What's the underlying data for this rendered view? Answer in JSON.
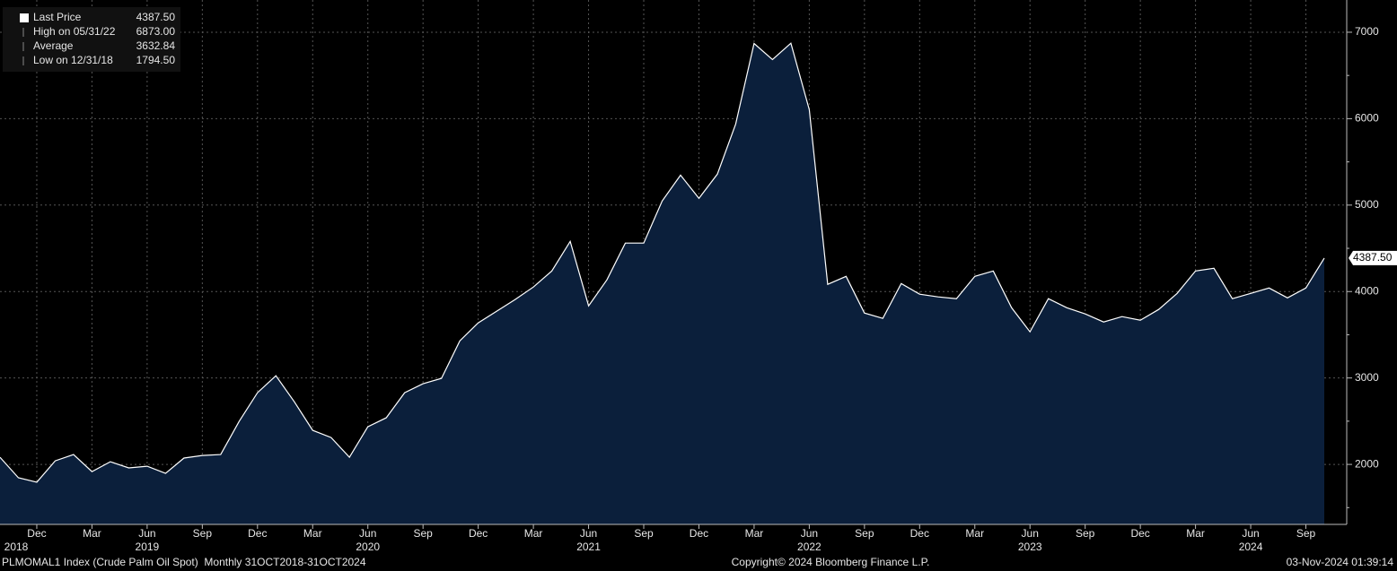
{
  "chart_data": {
    "type": "area",
    "x": [
      "2018-10",
      "2018-11",
      "2018-12",
      "2019-01",
      "2019-02",
      "2019-03",
      "2019-04",
      "2019-05",
      "2019-06",
      "2019-07",
      "2019-08",
      "2019-09",
      "2019-10",
      "2019-11",
      "2019-12",
      "2020-01",
      "2020-02",
      "2020-03",
      "2020-04",
      "2020-05",
      "2020-06",
      "2020-07",
      "2020-08",
      "2020-09",
      "2020-10",
      "2020-11",
      "2020-12",
      "2021-01",
      "2021-02",
      "2021-03",
      "2021-04",
      "2021-05",
      "2021-06",
      "2021-07",
      "2021-08",
      "2021-09",
      "2021-10",
      "2021-11",
      "2021-12",
      "2022-01",
      "2022-02",
      "2022-03",
      "2022-04",
      "2022-05",
      "2022-06",
      "2022-07",
      "2022-08",
      "2022-09",
      "2022-10",
      "2022-11",
      "2022-12",
      "2023-01",
      "2023-02",
      "2023-03",
      "2023-04",
      "2023-05",
      "2023-06",
      "2023-07",
      "2023-08",
      "2023-09",
      "2023-10",
      "2023-11",
      "2023-12",
      "2024-01",
      "2024-02",
      "2024-03",
      "2024-04",
      "2024-05",
      "2024-06",
      "2024-07",
      "2024-08",
      "2024-09",
      "2024-10"
    ],
    "series": [
      {
        "name": "Last Price",
        "color": "#ffffff",
        "fill": "#0b1f3b",
        "values": [
          2083,
          1845,
          1794.5,
          2041,
          2114,
          1917,
          2031,
          1959,
          1979,
          1896,
          2073,
          2104,
          2114,
          2497,
          2829,
          3026,
          2725,
          2394,
          2311,
          2083,
          2435,
          2539,
          2829,
          2933,
          2995,
          3430,
          3637,
          3772,
          3907,
          4052,
          4238,
          4580,
          3834,
          4135,
          4560,
          4560,
          5047,
          5347,
          5078,
          5358,
          5938,
          6870,
          6684,
          6873,
          6104,
          4083,
          4176,
          3751,
          3689,
          4093,
          3969,
          3938,
          3917,
          4176,
          4238,
          3813,
          3534,
          3917,
          3813,
          3741,
          3648,
          3710,
          3668,
          3793,
          3979,
          4238,
          4269,
          3917,
          3979,
          4041,
          3927,
          4041,
          4387.5
        ]
      }
    ],
    "legend_stats": [
      {
        "label": "Last Price",
        "value": 4387.5,
        "value_label": "4387.50"
      },
      {
        "label": "High on 05/31/22",
        "value": 6873,
        "value_label": "6873.00"
      },
      {
        "label": "Average",
        "value": 3632.84,
        "value_label": "3632.84"
      },
      {
        "label": "Low on 12/31/18",
        "value": 1794.5,
        "value_label": "1794.50"
      }
    ],
    "ylim": [
      1306,
      7373
    ],
    "yticks": [
      2000,
      3000,
      4000,
      5000,
      6000,
      7000
    ],
    "minor_yticks": [
      1500,
      2500,
      3500,
      4500,
      5500,
      6500
    ],
    "xticks": [
      {
        "value": "2018-12",
        "label": "Dec"
      },
      {
        "value": "2019-03",
        "label": "Mar"
      },
      {
        "value": "2019-06",
        "label": "Jun"
      },
      {
        "value": "2019-09",
        "label": "Sep"
      },
      {
        "value": "2019-12",
        "label": "Dec"
      },
      {
        "value": "2020-03",
        "label": "Mar"
      },
      {
        "value": "2020-06",
        "label": "Jun"
      },
      {
        "value": "2020-09",
        "label": "Sep"
      },
      {
        "value": "2020-12",
        "label": "Dec"
      },
      {
        "value": "2021-03",
        "label": "Mar"
      },
      {
        "value": "2021-06",
        "label": "Jun"
      },
      {
        "value": "2021-09",
        "label": "Sep"
      },
      {
        "value": "2021-12",
        "label": "Dec"
      },
      {
        "value": "2022-03",
        "label": "Mar"
      },
      {
        "value": "2022-06",
        "label": "Jun"
      },
      {
        "value": "2022-09",
        "label": "Sep"
      },
      {
        "value": "2022-12",
        "label": "Dec"
      },
      {
        "value": "2023-03",
        "label": "Mar"
      },
      {
        "value": "2023-06",
        "label": "Jun"
      },
      {
        "value": "2023-09",
        "label": "Sep"
      },
      {
        "value": "2023-12",
        "label": "Dec"
      },
      {
        "value": "2024-03",
        "label": "Mar"
      },
      {
        "value": "2024-06",
        "label": "Jun"
      },
      {
        "value": "2024-09",
        "label": "Sep"
      }
    ],
    "year_ticks": [
      {
        "value": "2018-10",
        "label": "2018"
      },
      {
        "value": "2019-06",
        "label": "2019"
      },
      {
        "value": "2020-06",
        "label": "2020"
      },
      {
        "value": "2021-06",
        "label": "2021"
      },
      {
        "value": "2022-06",
        "label": "2022"
      },
      {
        "value": "2023-06",
        "label": "2023"
      },
      {
        "value": "2024-06",
        "label": "2024"
      }
    ],
    "grid": true
  },
  "footer": {
    "left": "PLMOMAL1 Index (Crude Palm Oil Spot)  Monthly 31OCT2018-31OCT2024",
    "center": "Copyright© 2024 Bloomberg Finance L.P.",
    "right": "03-Nov-2024 01:39:14"
  }
}
